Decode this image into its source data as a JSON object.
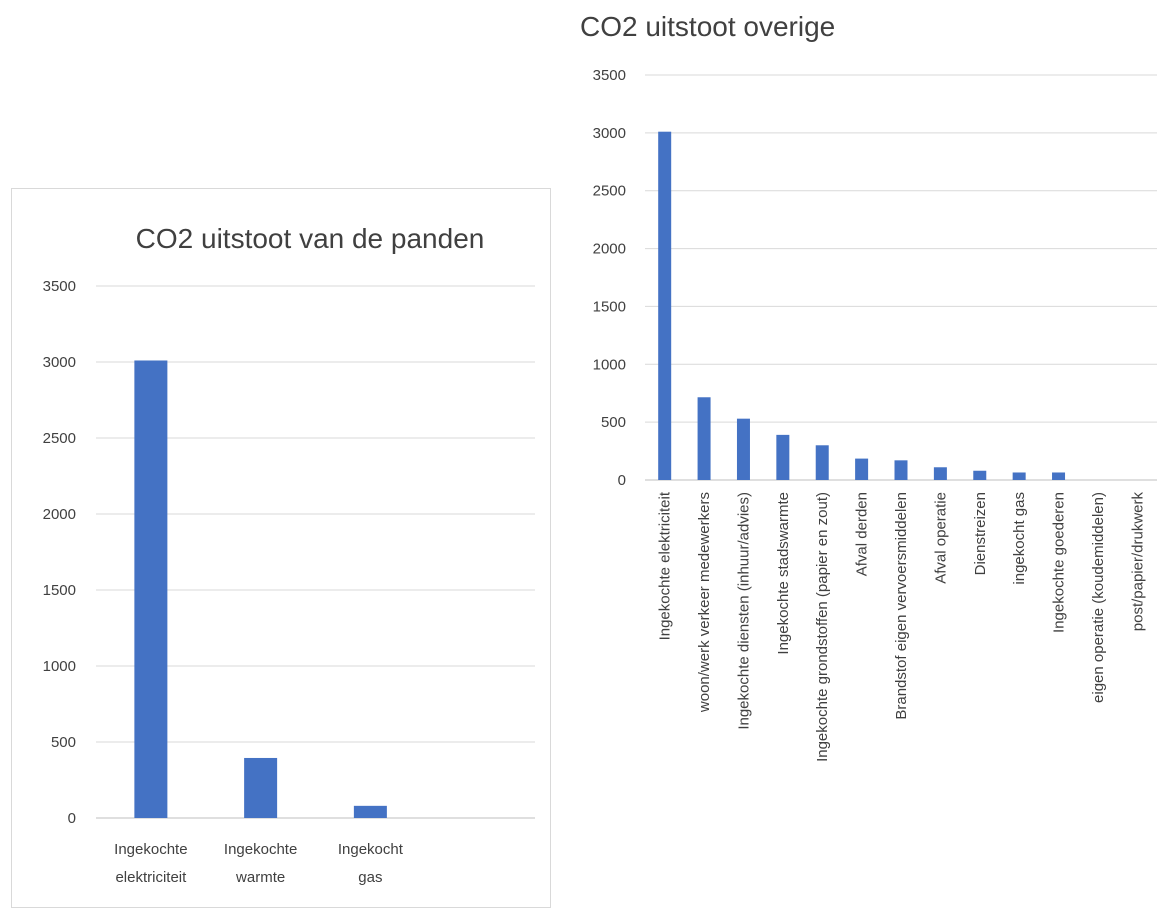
{
  "chart_data": [
    {
      "type": "bar",
      "title": "CO2 uitstoot van de panden",
      "categories": [
        [
          "Ingekochte",
          "elektriciteit"
        ],
        [
          "Ingekochte",
          "warmte"
        ],
        [
          "Ingekocht",
          "gas"
        ],
        [
          "",
          ""
        ]
      ],
      "values": [
        3010,
        395,
        80,
        0
      ],
      "ylim": [
        0,
        3500
      ],
      "yticks": [
        0,
        500,
        1000,
        1500,
        2000,
        2500,
        3000,
        3500
      ],
      "grid": true,
      "color": "#4472c4"
    },
    {
      "type": "bar",
      "title": "CO2 uitstoot overige",
      "categories": [
        "Ingekochte elektriciteit",
        "woon/werk verkeer medewerkers",
        "Ingekochte diensten (inhuur/advies)",
        "Ingekochte stadswarmte",
        "Ingekochte grondstoffen (papier en zout)",
        "Afval derden",
        "Brandstof eigen vervoersmiddelen",
        "Afval operatie",
        "Dienstreizen",
        "ingekocht gas",
        "Ingekochte goederen",
        "eigen operatie (koudemiddelen)",
        "post/papier/drukwerk"
      ],
      "values": [
        3010,
        715,
        530,
        390,
        300,
        185,
        170,
        110,
        80,
        65,
        65,
        0,
        0
      ],
      "ylim": [
        0,
        3500
      ],
      "yticks": [
        0,
        500,
        1000,
        1500,
        2000,
        2500,
        3000,
        3500
      ],
      "grid": true,
      "color": "#4472c4"
    }
  ]
}
